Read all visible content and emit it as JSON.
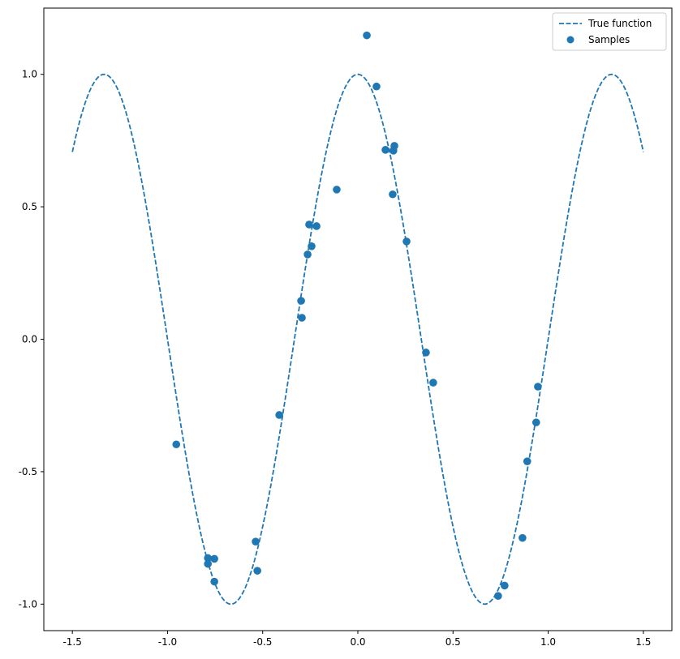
{
  "chart_data": {
    "type": "scatter",
    "title": "",
    "xlabel": "",
    "ylabel": "",
    "xlim": [
      -1.65,
      1.65
    ],
    "ylim": [
      -1.1,
      1.25
    ],
    "grid": false,
    "legend_position": "top-right",
    "xticks": [
      "-1.5",
      "-1.0",
      "-0.5",
      "0.0",
      "0.5",
      "1.0",
      "1.5"
    ],
    "yticks": [
      "-1.0",
      "-0.5",
      "0.0",
      "0.5",
      "1.0"
    ],
    "color": "#1f77b4",
    "series": [
      {
        "name": "True function",
        "kind": "line",
        "style": "dashed",
        "function": "cos(1.5*pi*x)",
        "x_range": [
          -1.5,
          1.5
        ]
      },
      {
        "name": "Samples",
        "kind": "scatter",
        "points": [
          [
            0.047,
            1.147
          ],
          [
            0.098,
            0.954
          ],
          [
            0.145,
            0.715
          ],
          [
            0.192,
            0.73
          ],
          [
            0.187,
            0.712
          ],
          [
            0.183,
            0.547
          ],
          [
            0.256,
            0.369
          ],
          [
            -0.111,
            0.565
          ],
          [
            -0.256,
            0.433
          ],
          [
            -0.217,
            0.427
          ],
          [
            -0.243,
            0.351
          ],
          [
            -0.264,
            0.32
          ],
          [
            -0.298,
            0.145
          ],
          [
            -0.294,
            0.081
          ],
          [
            -0.413,
            -0.286
          ],
          [
            -0.954,
            -0.397
          ],
          [
            -0.788,
            -0.826
          ],
          [
            -0.788,
            -0.848
          ],
          [
            -0.754,
            -0.829
          ],
          [
            -0.754,
            -0.915
          ],
          [
            -0.537,
            -0.764
          ],
          [
            -0.528,
            -0.874
          ],
          [
            0.358,
            -0.05
          ],
          [
            0.396,
            -0.164
          ],
          [
            0.946,
            -0.179
          ],
          [
            0.937,
            -0.314
          ],
          [
            0.89,
            -0.461
          ],
          [
            0.865,
            -0.75
          ],
          [
            0.771,
            -0.93
          ],
          [
            0.737,
            -0.969
          ]
        ]
      }
    ]
  }
}
